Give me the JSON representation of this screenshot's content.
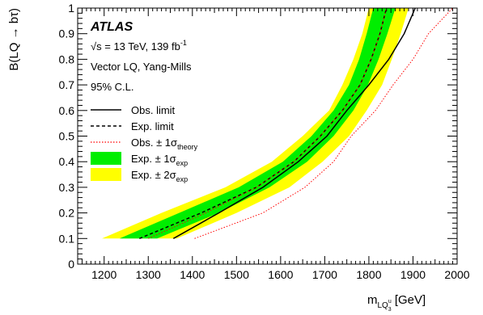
{
  "chart_data": {
    "type": "line",
    "experiment": "ATLAS",
    "energy_line": {
      "root": "√s",
      "text": " = 13 TeV, 139 fb",
      "sup": "-1"
    },
    "model": "Vector LQ, Yang-Mills",
    "cl": "95% C.L.",
    "ylabel": "B(LQ → bτ)",
    "xlabel": {
      "main": "m",
      "sub": "LQ",
      "subsup": "u",
      "subsub": "3",
      "unit": " [GeV]"
    },
    "xlim": [
      1140,
      2000
    ],
    "ylim": [
      0,
      1
    ],
    "x_ticks": [
      1200,
      1300,
      1400,
      1500,
      1600,
      1700,
      1800,
      1900,
      2000
    ],
    "y_ticks": [
      0,
      0.1,
      0.2,
      0.3,
      0.4,
      0.5,
      0.6,
      0.7,
      0.8,
      0.9,
      1
    ],
    "legend": [
      {
        "key": "obs",
        "label": "Obs. limit",
        "sub": ""
      },
      {
        "key": "exp",
        "label": "Exp. limit",
        "sub": ""
      },
      {
        "key": "theory",
        "label": "Obs. ± 1σ",
        "sub": "theory"
      },
      {
        "key": "band1",
        "label": "Exp. ± 1σ",
        "sub": "exp"
      },
      {
        "key": "band2",
        "label": "Exp. ± 2σ",
        "sub": "exp"
      }
    ],
    "colors": {
      "band2": "#ffff00",
      "band1": "#00ee00",
      "obs": "#000000",
      "exp": "#000000",
      "theory": "#ff0000"
    },
    "y_points": [
      0.1,
      0.2,
      0.3,
      0.4,
      0.5,
      0.6,
      0.7,
      0.8,
      0.9,
      1.0
    ],
    "series": {
      "band2_low": [
        1195,
        1330,
        1475,
        1580,
        1650,
        1710,
        1740,
        1765,
        1785,
        1800
      ],
      "band1_low": [
        1235,
        1370,
        1505,
        1605,
        1670,
        1720,
        1755,
        1778,
        1795,
        1810
      ],
      "band1_high": [
        1320,
        1460,
        1575,
        1660,
        1720,
        1765,
        1798,
        1822,
        1842,
        1860
      ],
      "band2_high": [
        1365,
        1500,
        1620,
        1695,
        1755,
        1795,
        1830,
        1852,
        1872,
        1890
      ],
      "exp": [
        1280,
        1420,
        1545,
        1630,
        1690,
        1740,
        1780,
        1805,
        1825,
        1840
      ],
      "obs": [
        1357,
        1460,
        1560,
        1640,
        1705,
        1750,
        1800,
        1845,
        1880,
        1905
      ],
      "theory_low": [
        1300,
        1430,
        1545,
        1630,
        1690,
        1740,
        1780,
        1805,
        1825,
        1840
      ],
      "theory_high": [
        1405,
        1560,
        1655,
        1720,
        1760,
        1815,
        1855,
        1900,
        1935,
        1990
      ]
    }
  }
}
